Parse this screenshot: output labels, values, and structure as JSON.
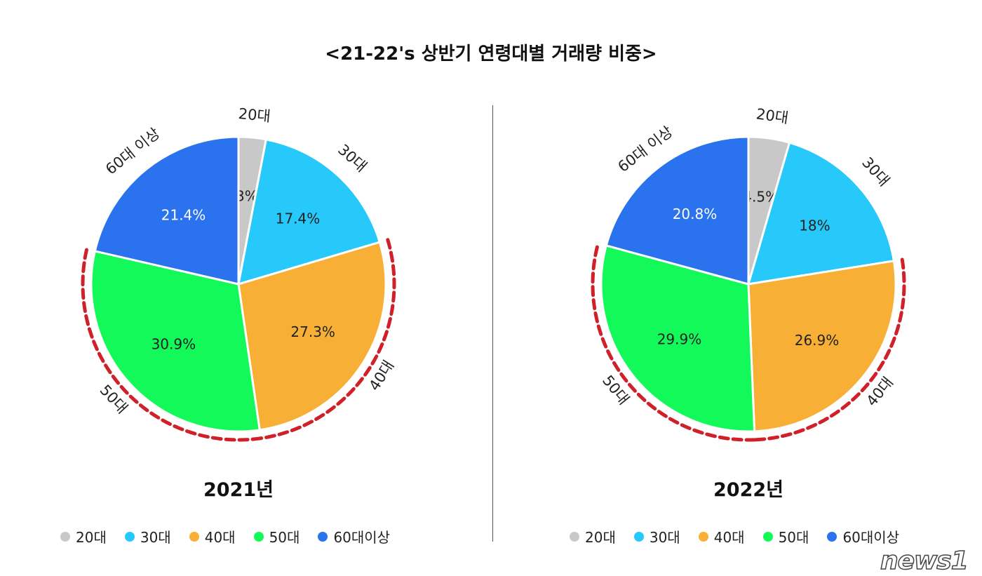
{
  "title": "<21-22's 상반기 연령대별 거래량 비중>",
  "watermark": "news1",
  "chart_data": [
    {
      "type": "pie",
      "title": "2021년",
      "categories": [
        "20대",
        "30대",
        "40대",
        "50대",
        "60대 이상"
      ],
      "values": [
        3,
        17.4,
        27.3,
        30.9,
        21.4
      ],
      "data_labels": [
        "3%",
        "17.4%",
        "27.3%",
        "30.9%",
        "21.4%"
      ],
      "colors": [
        "#c8c8c8",
        "#27c8fa",
        "#f7b035",
        "#14f95a",
        "#2a72ee"
      ],
      "highlighted": [
        "40대",
        "50대"
      ],
      "legend": [
        "20대",
        "30대",
        "40대",
        "50대",
        "60대이상"
      ],
      "legend_position": "bottom"
    },
    {
      "type": "pie",
      "title": "2022년",
      "categories": [
        "20대",
        "30대",
        "40대",
        "50대",
        "60대 이상"
      ],
      "values": [
        4.5,
        18,
        26.9,
        29.9,
        20.8
      ],
      "data_labels": [
        "4.5%",
        "18%",
        "26.9%",
        "29.9%",
        "20.8%"
      ],
      "colors": [
        "#c8c8c8",
        "#27c8fa",
        "#f7b035",
        "#14f95a",
        "#2a72ee"
      ],
      "highlighted": [
        "40대",
        "50대"
      ],
      "legend": [
        "20대",
        "30대",
        "40대",
        "50대",
        "60대이상"
      ],
      "legend_position": "bottom"
    }
  ],
  "highlight_color": "#d0202a"
}
